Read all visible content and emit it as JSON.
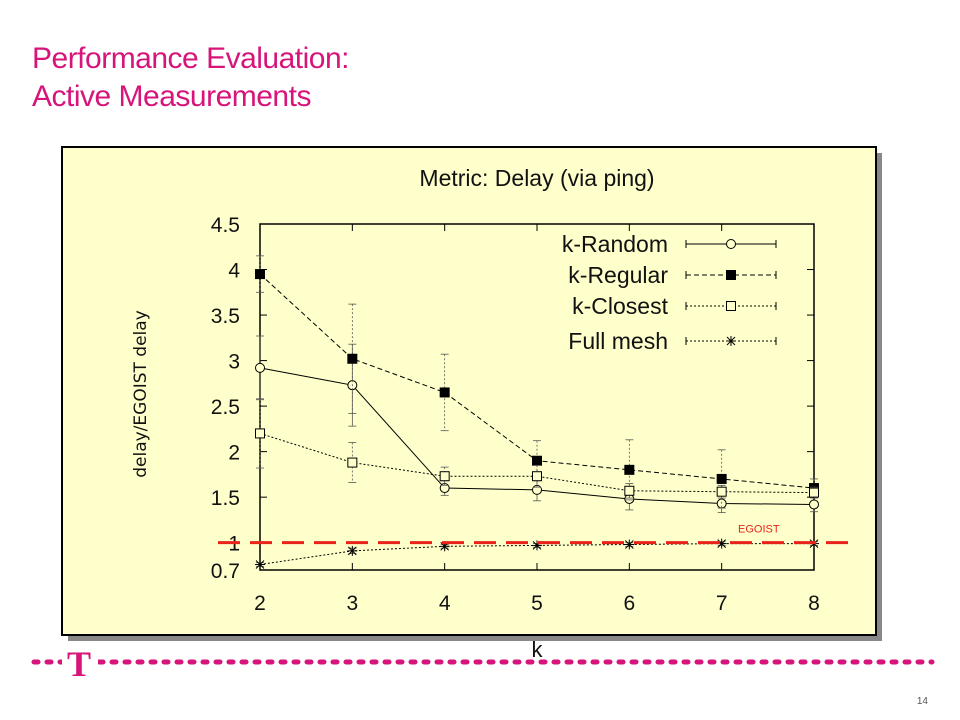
{
  "slide": {
    "title_line1": "Performance Evaluation:",
    "title_line2": "Active Measurements",
    "page_number": "14",
    "logo_letter": "T"
  },
  "colors": {
    "brand_magenta": "#d6147a",
    "panel_fill": "#ffffcc",
    "egoist_line": "#e8241a"
  },
  "chart_data": {
    "type": "line",
    "title": "Metric: Delay (via ping)",
    "xlabel": "k",
    "ylabel": "delay/EGOIST delay",
    "x": [
      2,
      3,
      4,
      5,
      6,
      7,
      8
    ],
    "x_ticks": [
      "2",
      "3",
      "4",
      "5",
      "6",
      "7",
      "8"
    ],
    "y_ticks": [
      {
        "value": 0.7,
        "label": "0.7"
      },
      {
        "value": 1,
        "label": "1"
      },
      {
        "value": 1.5,
        "label": "1.5"
      },
      {
        "value": 2,
        "label": "2"
      },
      {
        "value": 2.5,
        "label": "2.5"
      },
      {
        "value": 3,
        "label": "3"
      },
      {
        "value": 3.5,
        "label": "3.5"
      },
      {
        "value": 4,
        "label": "4"
      },
      {
        "value": 4.5,
        "label": "4.5"
      }
    ],
    "xlim": [
      2,
      8
    ],
    "ylim": [
      0.7,
      4.5
    ],
    "grid": false,
    "legend_position": "top-right",
    "series": [
      {
        "name": "k-Random",
        "marker": "circle-open",
        "dash": "solid",
        "values": [
          2.92,
          2.73,
          1.6,
          1.58,
          1.48,
          1.43,
          1.42
        ],
        "err": [
          0.35,
          0.45,
          0.08,
          0.12,
          0.12,
          0.1,
          0.08
        ]
      },
      {
        "name": "k-Regular",
        "marker": "square-filled",
        "dash": "dashed",
        "values": [
          3.95,
          3.02,
          2.65,
          1.9,
          1.8,
          1.7,
          1.6
        ],
        "err": [
          0.2,
          0.6,
          0.42,
          0.22,
          0.33,
          0.32,
          0.1
        ]
      },
      {
        "name": "k-Closest",
        "marker": "square-open",
        "dash": "dotted",
        "values": [
          2.2,
          1.88,
          1.73,
          1.73,
          1.57,
          1.56,
          1.55
        ],
        "err": [
          0.38,
          0.22,
          0.1,
          0.12,
          0.08,
          0.07,
          0.06
        ]
      },
      {
        "name": "Full mesh",
        "marker": "star",
        "dash": "dotted",
        "values": [
          0.76,
          0.91,
          0.96,
          0.97,
          0.98,
          0.99,
          0.99
        ],
        "err": [
          0.02,
          0.03,
          0.02,
          0.02,
          0.02,
          0.02,
          0.02
        ]
      }
    ],
    "reference_line": {
      "label": "EGOIST",
      "value": 1
    }
  }
}
